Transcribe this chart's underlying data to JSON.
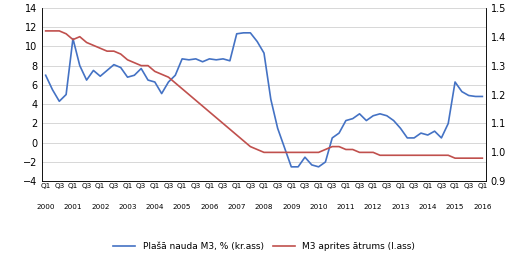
{
  "left_ylim": [
    -4,
    14
  ],
  "right_ylim": [
    0.9,
    1.5
  ],
  "left_yticks": [
    -4,
    -2,
    0,
    2,
    4,
    6,
    8,
    10,
    12,
    14
  ],
  "right_yticks": [
    0.9,
    1.0,
    1.1,
    1.2,
    1.3,
    1.4,
    1.5
  ],
  "blue_color": "#4472C4",
  "red_color": "#C0504D",
  "legend_blue": "Plašā nauda M3, % (kr.ass)",
  "legend_red": "M3 aprites ātrums (l.ass)",
  "background_color": "#ffffff",
  "grid_color": "#c8c8c8",
  "blue": [
    7.0,
    5.5,
    4.3,
    5.0,
    10.8,
    8.0,
    6.5,
    7.5,
    6.9,
    7.5,
    8.1,
    7.8,
    6.8,
    7.0,
    7.7,
    6.5,
    6.3,
    5.1,
    6.3,
    7.0,
    8.7,
    8.6,
    8.7,
    8.4,
    8.7,
    8.6,
    8.7,
    8.5,
    11.3,
    11.4,
    11.4,
    10.5,
    9.3,
    4.5,
    1.5,
    -0.5,
    -2.5,
    -2.5,
    -1.5,
    -2.3,
    -2.5,
    -2.0,
    0.5,
    1.0,
    2.3,
    2.5,
    3.0,
    2.3,
    2.8,
    3.0,
    2.8,
    2.3,
    1.5,
    0.5,
    0.5,
    1.0,
    0.8,
    1.2,
    0.5,
    2.0,
    6.3,
    5.3,
    4.9,
    4.8,
    4.8
  ],
  "red": [
    1.42,
    1.42,
    1.42,
    1.41,
    1.39,
    1.4,
    1.38,
    1.37,
    1.36,
    1.35,
    1.35,
    1.34,
    1.32,
    1.31,
    1.3,
    1.3,
    1.28,
    1.27,
    1.26,
    1.24,
    1.22,
    1.2,
    1.18,
    1.16,
    1.14,
    1.12,
    1.1,
    1.08,
    1.06,
    1.04,
    1.02,
    1.01,
    1.0,
    1.0,
    1.0,
    1.0,
    1.0,
    1.0,
    1.0,
    1.0,
    1.0,
    1.01,
    1.02,
    1.02,
    1.01,
    1.01,
    1.0,
    1.0,
    1.0,
    0.99,
    0.99,
    0.99,
    0.99,
    0.99,
    0.99,
    0.99,
    0.99,
    0.99,
    0.99,
    0.99,
    0.98,
    0.98,
    0.98,
    0.98,
    0.98
  ]
}
